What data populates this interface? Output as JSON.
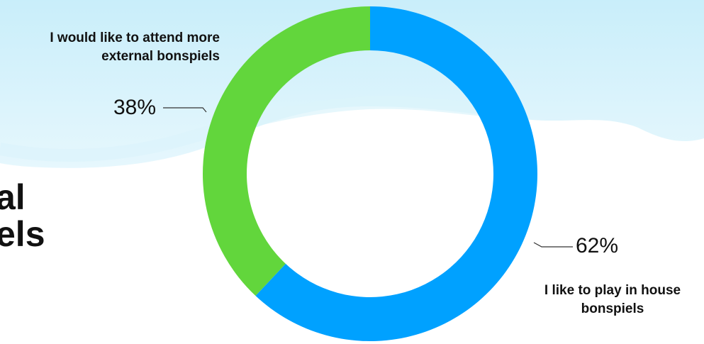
{
  "heading_fragments": [
    "al",
    "els"
  ],
  "chart_data": {
    "type": "pie",
    "subtype": "donut",
    "title": "",
    "categories": [
      "I like to play in house bonspiels",
      "I would like to attend more external bonspiels"
    ],
    "values": [
      62,
      38
    ],
    "value_labels": [
      "62%",
      "38%"
    ],
    "colors": [
      "#00A1FF",
      "#62D63C"
    ],
    "legend": "none"
  }
}
